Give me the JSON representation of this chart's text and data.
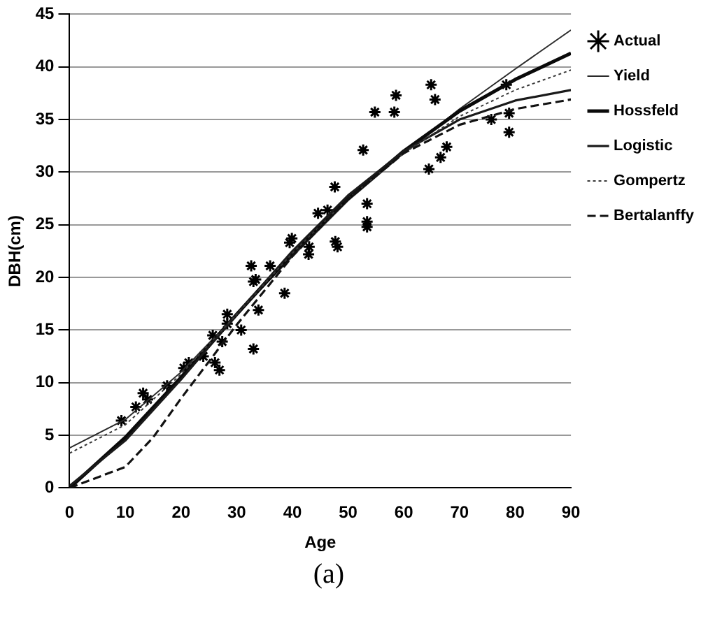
{
  "chart_data": {
    "type": "scatter",
    "xlabel": "Age",
    "ylabel": "DBH(cm)",
    "xlim": [
      0,
      90
    ],
    "xticks": [
      0,
      10,
      20,
      30,
      40,
      50,
      60,
      70,
      80,
      90
    ],
    "ylim": [
      0,
      45
    ],
    "yticks": [
      0,
      5,
      10,
      15,
      20,
      25,
      30,
      35,
      40,
      45
    ],
    "grid": "y",
    "legend": "right",
    "annotations": [
      "(a)"
    ],
    "series": [
      {
        "name": "Actual",
        "marker": "cross",
        "color": "#000000",
        "x": [
          9.3,
          11.9,
          13.2,
          14,
          17.5,
          20.5,
          21.4,
          24,
          25.7,
          26.1,
          26.9,
          27.4,
          28.3,
          28.3,
          30.8,
          33,
          33.9,
          33,
          33.4,
          32.6,
          36,
          38.6,
          39.5,
          42.9,
          43,
          39.9,
          44.6,
          46.3,
          47.6,
          48.1,
          47.7,
          52.7,
          53.4,
          53.4,
          53.4,
          54.8,
          58.3,
          58.6,
          64.5,
          64.9,
          65.6,
          66.6,
          67.7,
          75.7,
          78.4,
          78.9,
          78.9
        ],
        "values": [
          6.4,
          7.7,
          9.0,
          8.4,
          9.7,
          11.4,
          11.9,
          12.5,
          14.5,
          11.9,
          11.2,
          13.9,
          15.6,
          16.5,
          15.0,
          13.2,
          16.9,
          19.6,
          19.8,
          21.1,
          21.1,
          18.5,
          23.3,
          22.2,
          22.9,
          23.7,
          26.1,
          26.4,
          28.6,
          22.9,
          23.4,
          32.1,
          27.0,
          25.3,
          24.8,
          35.7,
          35.7,
          37.3,
          30.3,
          38.3,
          36.9,
          31.4,
          32.4,
          35.0,
          38.3,
          35.6,
          33.8
        ]
      },
      {
        "name": "Yield",
        "type": "line",
        "marker": "none",
        "line_style": "solid",
        "color": "#2a2a2a",
        "x": [
          0,
          10,
          20,
          30,
          40,
          50,
          60,
          70,
          80,
          90
        ],
        "values": [
          3.8,
          6.5,
          11,
          16.5,
          22,
          27.3,
          31.8,
          36,
          39.8,
          43.5
        ]
      },
      {
        "name": "Hossfeld",
        "type": "line",
        "marker": "none",
        "line_style": "solid",
        "color": "#0a0a0a",
        "x": [
          0,
          10,
          20,
          30,
          40,
          50,
          60,
          70,
          80,
          90
        ],
        "values": [
          0,
          4.8,
          10.5,
          16.5,
          22.3,
          27.5,
          32,
          35.8,
          38.8,
          41.3
        ]
      },
      {
        "name": "Logistic",
        "type": "line",
        "marker": "none",
        "line_style": "solid",
        "color": "#1a1a1a",
        "x": [
          0,
          10,
          20,
          30,
          40,
          50,
          60,
          70,
          80,
          90
        ],
        "values": [
          0.2,
          4.5,
          10.3,
          16.5,
          22.5,
          27.8,
          32,
          35,
          36.8,
          37.8
        ]
      },
      {
        "name": "Gompertz",
        "type": "line",
        "marker": "none",
        "line_style": "dotted",
        "color": "#383838",
        "x": [
          0,
          10,
          20,
          30,
          40,
          50,
          60,
          70,
          80,
          90
        ],
        "values": [
          3.3,
          6,
          10.8,
          16.5,
          22.3,
          27.5,
          31.8,
          35.3,
          37.8,
          39.7
        ]
      },
      {
        "name": "Bertalanffy",
        "type": "line",
        "marker": "none",
        "line_style": "dashed",
        "color": "#121212",
        "x": [
          0,
          10,
          15,
          20,
          30,
          40,
          50,
          60,
          70,
          80,
          90
        ],
        "values": [
          0,
          2,
          4.8,
          8.5,
          15.5,
          22,
          27.5,
          31.8,
          34.5,
          36,
          36.9
        ]
      }
    ]
  }
}
